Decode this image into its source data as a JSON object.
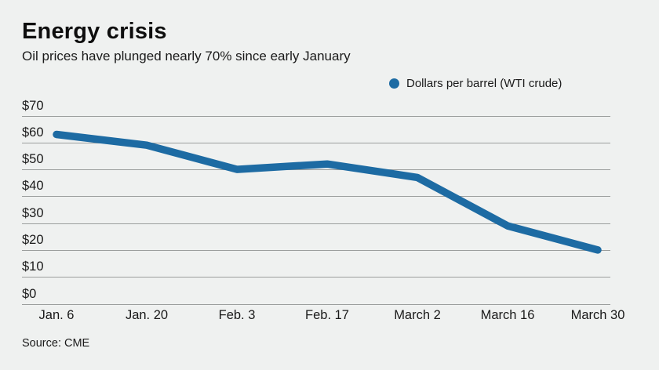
{
  "header": {
    "title": "Energy crisis",
    "subtitle": "Oil prices have plunged nearly 70% since early January"
  },
  "legend": {
    "label": "Dollars per barrel (WTI crude)",
    "dot_color": "#1d6ba3"
  },
  "chart_data": {
    "type": "line",
    "title": "Energy crisis",
    "subtitle": "Oil prices have plunged nearly 70% since early January",
    "categories": [
      "Jan. 6",
      "Jan. 20",
      "Feb. 3",
      "Feb. 17",
      "March 2",
      "March 16",
      "March 30"
    ],
    "series": [
      {
        "name": "Dollars per barrel (WTI crude)",
        "values": [
          63,
          59,
          50,
          52,
          47,
          29,
          20
        ]
      }
    ],
    "xlabel": "",
    "ylabel": "Dollars per barrel",
    "ylim": [
      0,
      70
    ],
    "ytick_values": [
      70,
      60,
      50,
      40,
      30,
      20,
      10,
      0
    ],
    "ytick_labels": [
      "$70",
      "$60",
      "$50",
      "$40",
      "$30",
      "$20",
      "$10",
      "$0"
    ],
    "grid": "horizontal",
    "legend_position": "top-right"
  },
  "colors": {
    "line": "#1d6ba3",
    "background": "#eff1f0",
    "gridline": "#9b9e9d",
    "text": "#1a1a1a"
  },
  "footer": {
    "source": "Source: CME"
  }
}
